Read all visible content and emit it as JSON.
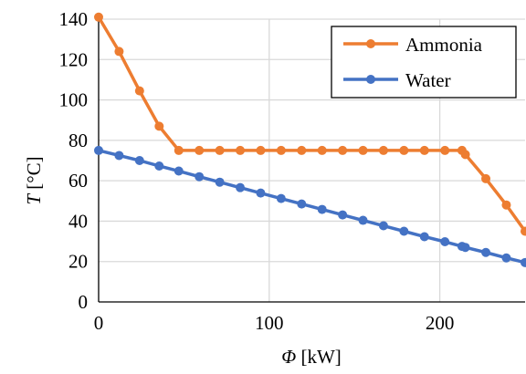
{
  "chart_data": {
    "type": "line",
    "xlabel": {
      "symbol": "Φ",
      "unit": " [kW]"
    },
    "ylabel": {
      "symbol": "T",
      "unit": " [°C]"
    },
    "xlim": [
      0,
      250
    ],
    "ylim": [
      0,
      140
    ],
    "xticks": [
      0,
      100,
      200
    ],
    "yticks": [
      0,
      20,
      40,
      60,
      80,
      100,
      120,
      140
    ],
    "grid": true,
    "legend": "top-right",
    "series": [
      {
        "name": "Ammonia",
        "color": "#ed7d31",
        "points": [
          [
            0,
            141
          ],
          [
            12,
            124
          ],
          [
            24,
            104.5
          ],
          [
            35.5,
            87
          ],
          [
            47,
            75
          ],
          [
            59,
            75
          ],
          [
            71,
            75
          ],
          [
            83,
            75
          ],
          [
            95,
            75
          ],
          [
            107,
            75
          ],
          [
            119,
            75
          ],
          [
            131,
            75
          ],
          [
            143,
            75
          ],
          [
            155,
            75
          ],
          [
            167,
            75
          ],
          [
            179,
            75
          ],
          [
            191,
            75
          ],
          [
            203,
            75
          ],
          [
            213,
            75
          ],
          [
            215,
            73
          ],
          [
            227,
            61
          ],
          [
            239,
            48
          ],
          [
            250,
            35
          ]
        ]
      },
      {
        "name": "Water",
        "color": "#4472c4",
        "points": [
          [
            0,
            75
          ],
          [
            12,
            72.5
          ],
          [
            24,
            70
          ],
          [
            35.5,
            67.3
          ],
          [
            47,
            64.8
          ],
          [
            59,
            62
          ],
          [
            71,
            59.3
          ],
          [
            83,
            56.6
          ],
          [
            95,
            53.9
          ],
          [
            107,
            51.2
          ],
          [
            119,
            48.5
          ],
          [
            131,
            45.8
          ],
          [
            143,
            43.1
          ],
          [
            155,
            40.4
          ],
          [
            167,
            37.7
          ],
          [
            179,
            35
          ],
          [
            191,
            32.3
          ],
          [
            203,
            29.8
          ],
          [
            213,
            27.5
          ],
          [
            215,
            27
          ],
          [
            227,
            24.5
          ],
          [
            239,
            21.8
          ],
          [
            250,
            19.5
          ]
        ]
      }
    ]
  }
}
